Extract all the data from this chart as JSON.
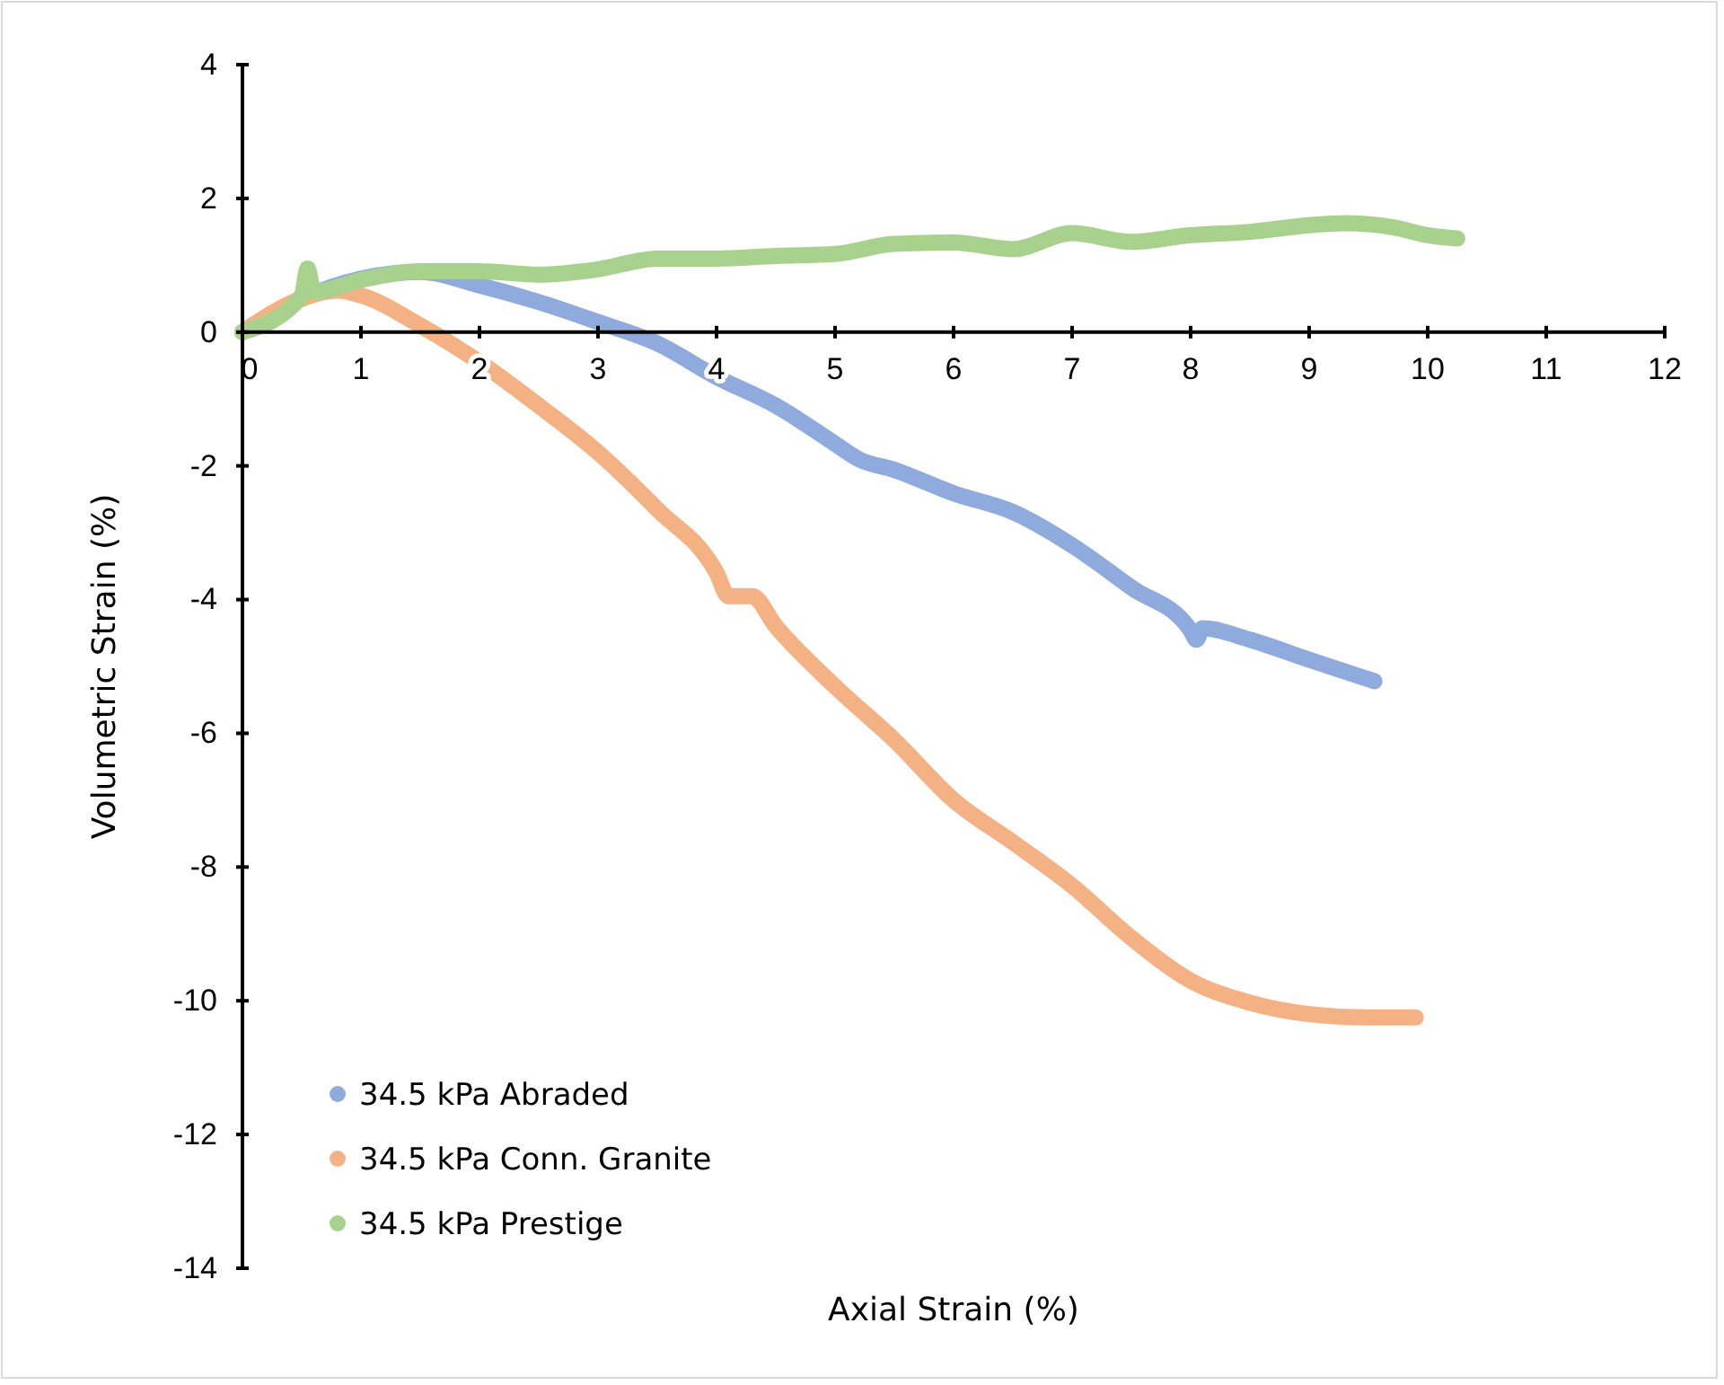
{
  "chart_data": {
    "type": "line",
    "xlabel": "Axial Strain (%)",
    "ylabel": "Volumetric Strain (%)",
    "xlim": [
      0,
      12
    ],
    "xticks": [
      0,
      1,
      2,
      3,
      4,
      5,
      6,
      7,
      8,
      9,
      10,
      11,
      12
    ],
    "ylim": [
      -14,
      4
    ],
    "yticks": [
      -14,
      -12,
      -10,
      -8,
      -6,
      -4,
      -2,
      0,
      2,
      4
    ],
    "grid": false,
    "legend": "bottom left",
    "series": [
      {
        "name": "34.5 kPa Abraded",
        "color": "#8faadc",
        "x": [
          0,
          0.5,
          1,
          1.5,
          2,
          2.5,
          3,
          3.5,
          4,
          4.5,
          5,
          5.2,
          5.5,
          6,
          6.5,
          7,
          7.5,
          8,
          8.05,
          8.1,
          8.5,
          9,
          9.55
        ],
        "values": [
          0,
          0.5,
          0.8,
          0.9,
          0.7,
          0.45,
          0.15,
          -0.17,
          -0.67,
          -1.1,
          -1.67,
          -1.9,
          -2.06,
          -2.41,
          -2.69,
          -3.19,
          -3.82,
          -4.46,
          -4.6,
          -4.43,
          -4.6,
          -4.9,
          -5.22
        ]
      },
      {
        "name": "34.5 kPa Conn. Granite",
        "color": "#f4b183",
        "x": [
          0,
          0.5,
          0.8,
          1,
          1.5,
          2,
          2.5,
          3,
          3.5,
          4,
          4.1,
          4.3,
          4.5,
          5,
          5.5,
          6,
          6.5,
          7,
          7.5,
          8,
          8.5,
          9,
          9.5,
          9.9
        ],
        "values": [
          0,
          0.5,
          0.62,
          0.55,
          0.1,
          -0.45,
          -1.1,
          -1.8,
          -2.65,
          -3.6,
          -3.95,
          -3.95,
          -4.4,
          -5.3,
          -6.1,
          -7.0,
          -7.63,
          -8.28,
          -9.06,
          -9.7,
          -10.03,
          -10.2,
          -10.25,
          -10.25
        ]
      },
      {
        "name": "34.5 kPa Prestige",
        "color": "#a9d18e",
        "x": [
          0,
          0.5,
          0.55,
          0.6,
          1,
          1.5,
          2,
          2.5,
          3,
          3.5,
          4,
          4.5,
          5,
          5.5,
          6,
          6.5,
          7,
          7.5,
          8,
          8.5,
          9,
          9.3,
          9.7,
          10,
          10.25
        ],
        "values": [
          0,
          0.54,
          0.95,
          0.6,
          0.78,
          0.91,
          0.91,
          0.86,
          0.94,
          1.1,
          1.1,
          1.14,
          1.17,
          1.32,
          1.34,
          1.24,
          1.48,
          1.35,
          1.45,
          1.5,
          1.6,
          1.63,
          1.57,
          1.45,
          1.4
        ]
      }
    ]
  }
}
